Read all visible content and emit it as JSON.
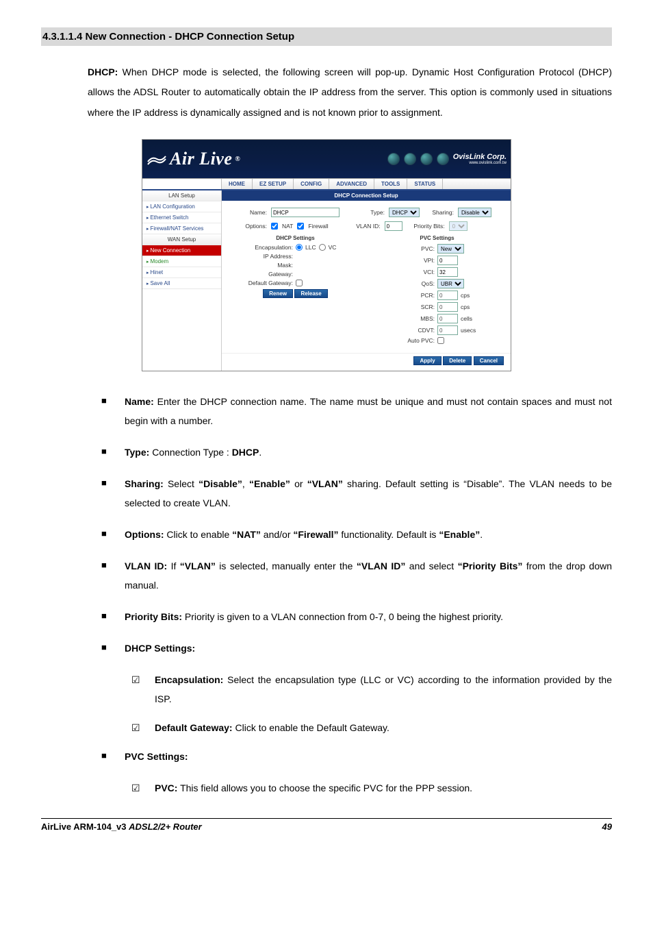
{
  "heading": "4.3.1.1.4 New Connection - DHCP Connection Setup",
  "intro_prefix": "DHCP:",
  "intro_rest": " When DHCP mode is selected, the following screen will pop-up. Dynamic Host Configuration Protocol (DHCP) allows the ADSL Router to automatically obtain the IP address from the server. This option is commonly used in situations where the IP address is dynamically assigned and is not known prior to assignment.",
  "screenshot": {
    "logo": "Air Live",
    "corp": "OvisLink Corp.",
    "corp_url": "www.ovislink.com.tw",
    "nav": [
      "HOME",
      "EZ SETUP",
      "CONFIG",
      "ADVANCED",
      "TOOLS",
      "STATUS"
    ],
    "sidebar": {
      "head1": "LAN Setup",
      "items1": [
        "LAN Configuration",
        "Ethernet Switch",
        "Firewall/NAT Services"
      ],
      "head2": "WAN Setup",
      "items2": [
        "New Connection",
        "Modem",
        "Hinet",
        "Save All"
      ]
    },
    "title": "DHCP Connection Setup",
    "labels": {
      "name": "Name:",
      "type": "Type:",
      "sharing": "Sharing:",
      "options": "Options:",
      "nat": "NAT",
      "firewall": "Firewall",
      "vlanid": "VLAN ID:",
      "pbits": "Priority Bits:",
      "dhcp_head": "DHCP Settings",
      "pvc_head": "PVC Settings",
      "encap": "Encapsulation:",
      "llc": "LLC",
      "vc": "VC",
      "ip": "IP Address:",
      "mask": "Mask:",
      "gw": "Gateway:",
      "dgw": "Default Gateway:",
      "pvc": "PVC:",
      "vpi": "VPI:",
      "vci": "VCI:",
      "qos": "QoS:",
      "pcr": "PCR:",
      "scr": "SCR:",
      "mbs": "MBS:",
      "cdvt": "CDVT:",
      "auto": "Auto PVC:",
      "cps": "cps",
      "cells": "cells",
      "usecs": "usecs"
    },
    "values": {
      "name": "DHCP",
      "type": "DHCP",
      "sharing": "Disable",
      "vlanid": "0",
      "pbits": "0",
      "pvc": "New",
      "vpi": "0",
      "vci": "32",
      "qos": "UBR",
      "pcr": "0",
      "scr": "0",
      "mbs": "0",
      "cdvt": "0"
    },
    "btns": {
      "renew": "Renew",
      "release": "Release",
      "apply": "Apply",
      "delete": "Delete",
      "cancel": "Cancel"
    }
  },
  "bullets": [
    {
      "label": "Name:",
      "rest": " Enter the DHCP connection name. The name must be unique and must not contain spaces and must not begin with a number."
    },
    {
      "label": "Type:",
      "rest_pre": " Connection Type : ",
      "bold2": "DHCP",
      "rest_post": "."
    },
    {
      "label": "Sharing:",
      "rest": " Select “Disable”, “Enable” or “VLAN” sharing. Default setting is “Disable”. The VLAN needs to be selected to create VLAN.",
      "bolds": [
        "“Disable”",
        "“Enable”",
        "“VLAN”",
        "“Disable”"
      ]
    },
    {
      "label": "Options:",
      "rest": " Click to enable “NAT” and/or “Firewall” functionality. Default is “Enable”.",
      "bolds": [
        "“NAT”",
        "“Firewall”",
        "“Enable”"
      ]
    },
    {
      "label": "VLAN ID:",
      "rest": " If “VLAN” is selected, manually enter the “VLAN ID” and select “Priority Bits” from the drop down manual.",
      "bolds": [
        "“VLAN”",
        "“VLAN ID”",
        "“Priority Bits”"
      ]
    },
    {
      "label": "Priority Bits:",
      "rest": " Priority is given to a VLAN connection from 0-7, 0 being the highest priority."
    },
    {
      "label": "DHCP Settings:",
      "rest": "",
      "subs": [
        {
          "slabel": "Encapsulation:",
          "srest": " Select the encapsulation type (LLC or VC) according to the information provided by the ISP."
        },
        {
          "slabel": "Default Gateway:",
          "srest": " Click to enable the Default Gateway."
        }
      ]
    },
    {
      "label": "PVC Settings:",
      "rest": "",
      "subs": [
        {
          "slabel": "PVC:",
          "srest": " This field allows you to choose the specific PVC for the PPP session."
        }
      ]
    }
  ],
  "footer": {
    "product": "AirLive ARM-104_v3 ",
    "suffix": "ADSL2/2+ Router",
    "page": "49"
  }
}
